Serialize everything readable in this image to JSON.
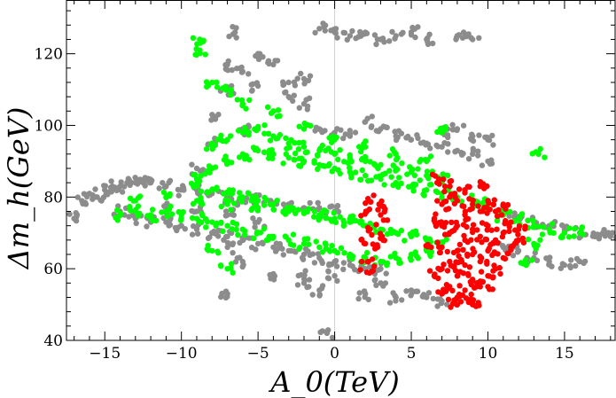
{
  "chart_data": {
    "type": "scatter",
    "xlabel": "A_0(TeV)",
    "ylabel": "Δm_h(GeV)",
    "xlim": [
      -17.5,
      18.3
    ],
    "ylim": [
      40,
      135
    ],
    "xticks": [
      -15,
      -10,
      -5,
      0,
      5,
      10,
      15
    ],
    "yticks": [
      40,
      60,
      80,
      100,
      120
    ],
    "xtick_labels": [
      "−15",
      "−10",
      "−5",
      "0",
      "5",
      "10",
      "15"
    ],
    "ytick_labels": [
      "40",
      "60",
      "80",
      "100",
      "120"
    ],
    "zero_line": true,
    "grid": false,
    "legend": "none",
    "series": [
      {
        "color": "#8c8c8c",
        "points": [
          [
            -17,
            74
          ],
          [
            -16.5,
            79
          ],
          [
            -16,
            81
          ],
          [
            -15.5,
            80
          ],
          [
            -15,
            82
          ],
          [
            -14.5,
            83
          ],
          [
            -14,
            83
          ],
          [
            -13.5,
            84
          ],
          [
            -13,
            84
          ],
          [
            -12.5,
            84
          ],
          [
            -12,
            84
          ],
          [
            -11,
            83
          ],
          [
            -10,
            82
          ],
          [
            -9,
            82
          ],
          [
            -8,
            81
          ],
          [
            -7,
            80
          ],
          [
            -6,
            79
          ],
          [
            -5,
            79
          ],
          [
            -4,
            78
          ],
          [
            -3,
            78
          ],
          [
            -2,
            77
          ],
          [
            -1,
            77
          ],
          [
            0,
            76
          ],
          [
            -13,
            74
          ],
          [
            -12,
            73
          ],
          [
            -11,
            73
          ],
          [
            -10,
            72
          ],
          [
            -9,
            71
          ],
          [
            -8,
            70
          ],
          [
            -7,
            69
          ],
          [
            -6,
            68
          ],
          [
            -5,
            67
          ],
          [
            -4,
            66
          ],
          [
            -3,
            65
          ],
          [
            -2,
            64
          ],
          [
            -1,
            63
          ],
          [
            0,
            62
          ],
          [
            1,
            61
          ],
          [
            2,
            60
          ],
          [
            3,
            60
          ],
          [
            -14,
            76
          ],
          [
            -11,
            77
          ],
          [
            -9,
            76
          ],
          [
            -7,
            75
          ],
          [
            -5,
            73
          ],
          [
            -9,
            88
          ],
          [
            -8,
            95
          ],
          [
            -8,
            103
          ],
          [
            -7,
            110
          ],
          [
            -7,
            117
          ],
          [
            -6.5,
            126
          ],
          [
            -6,
            115
          ],
          [
            -5,
            120
          ],
          [
            -4,
            117
          ],
          [
            -3,
            108
          ],
          [
            -2,
            106
          ],
          [
            -1,
            99
          ],
          [
            0,
            98
          ],
          [
            1,
            97
          ],
          [
            2,
            101
          ],
          [
            3,
            99
          ],
          [
            4,
            97
          ],
          [
            5,
            96
          ],
          [
            6,
            95
          ],
          [
            7,
            94
          ],
          [
            8,
            93
          ],
          [
            9,
            92
          ],
          [
            10,
            90
          ],
          [
            -8,
            70
          ],
          [
            -7,
            66
          ],
          [
            -6,
            62
          ],
          [
            -7,
            53
          ],
          [
            -4,
            58
          ],
          [
            -2,
            58
          ],
          [
            0,
            58
          ],
          [
            -0.5,
            42
          ],
          [
            -2,
            56
          ],
          [
            -1,
            54
          ],
          [
            2,
            53
          ],
          [
            3,
            56
          ],
          [
            4,
            52
          ],
          [
            5,
            54
          ],
          [
            6,
            52
          ],
          [
            7,
            51
          ],
          [
            -1,
            127
          ],
          [
            0,
            126
          ],
          [
            1,
            125
          ],
          [
            2,
            126
          ],
          [
            3,
            124
          ],
          [
            4,
            125
          ],
          [
            5,
            126
          ],
          [
            6,
            124
          ],
          [
            8,
            125
          ],
          [
            9,
            124
          ],
          [
            11,
            76
          ],
          [
            12,
            74
          ],
          [
            13,
            73
          ],
          [
            14,
            72
          ],
          [
            15,
            71
          ],
          [
            16,
            70
          ],
          [
            17,
            69
          ],
          [
            17.5,
            70
          ],
          [
            18,
            69
          ],
          [
            11,
            66
          ],
          [
            12,
            65
          ],
          [
            13,
            63
          ],
          [
            14,
            62
          ],
          [
            15,
            61
          ],
          [
            16,
            62
          ],
          [
            10,
            96
          ],
          [
            9,
            97
          ],
          [
            8,
            99
          ],
          [
            7,
            98
          ],
          [
            -3,
            112
          ],
          [
            -2,
            113
          ],
          [
            -5,
            111
          ],
          [
            -6,
            99
          ]
        ]
      },
      {
        "color": "#00ff00",
        "points": [
          [
            -14,
            75
          ],
          [
            -13,
            76
          ],
          [
            -12,
            75
          ],
          [
            -11,
            76
          ],
          [
            -10,
            75
          ],
          [
            -9,
            74
          ],
          [
            -8,
            73
          ],
          [
            -7,
            72
          ],
          [
            -6,
            71
          ],
          [
            -5,
            70
          ],
          [
            -4,
            69
          ],
          [
            -3,
            68
          ],
          [
            -2,
            67
          ],
          [
            -1,
            66
          ],
          [
            0,
            65
          ],
          [
            1,
            64
          ],
          [
            2,
            63
          ],
          [
            3,
            62
          ],
          [
            4,
            63
          ],
          [
            5,
            64
          ],
          [
            6,
            65
          ],
          [
            -13,
            79
          ],
          [
            -11,
            80
          ],
          [
            -9,
            79
          ],
          [
            -7,
            78
          ],
          [
            -5,
            77
          ],
          [
            -3,
            76
          ],
          [
            -1,
            75
          ],
          [
            1,
            74
          ],
          [
            -9,
            85
          ],
          [
            -8,
            88
          ],
          [
            -7,
            90
          ],
          [
            -6,
            92
          ],
          [
            -5,
            93
          ],
          [
            -4,
            92
          ],
          [
            -3,
            91
          ],
          [
            -2,
            90
          ],
          [
            -1,
            89
          ],
          [
            0,
            88
          ],
          [
            1,
            87
          ],
          [
            2,
            86
          ],
          [
            3,
            85
          ],
          [
            4,
            84
          ],
          [
            5,
            83
          ],
          [
            6,
            82
          ],
          [
            7,
            81
          ],
          [
            8,
            80
          ],
          [
            9,
            79
          ],
          [
            10,
            78
          ],
          [
            -8,
            95
          ],
          [
            -7,
            96
          ],
          [
            -6,
            98
          ],
          [
            -5,
            99
          ],
          [
            -4,
            97
          ],
          [
            -3,
            95
          ],
          [
            -2,
            94
          ],
          [
            -1,
            93
          ],
          [
            0,
            92
          ],
          [
            1,
            91
          ],
          [
            2,
            90
          ],
          [
            3,
            89
          ],
          [
            4,
            88
          ],
          [
            5,
            87
          ],
          [
            6,
            86
          ],
          [
            7,
            85
          ],
          [
            -9,
            83
          ],
          [
            -8,
            82
          ],
          [
            -7,
            81
          ],
          [
            -6,
            80
          ],
          [
            -5,
            79
          ],
          [
            -4,
            78
          ],
          [
            -3,
            77
          ],
          [
            -2,
            76
          ],
          [
            -1,
            75
          ],
          [
            0,
            74
          ],
          [
            1,
            73
          ],
          [
            2,
            72
          ],
          [
            3,
            71
          ],
          [
            4,
            70
          ],
          [
            5,
            69
          ],
          [
            6,
            68
          ],
          [
            7,
            67
          ],
          [
            -8.8,
            124
          ],
          [
            -8.8,
            121
          ],
          [
            -8,
            112
          ],
          [
            -7,
            110
          ],
          [
            -6,
            106
          ],
          [
            -4,
            104
          ],
          [
            -2,
            99
          ],
          [
            0,
            96
          ],
          [
            2,
            94
          ],
          [
            4,
            92
          ],
          [
            6,
            90
          ],
          [
            7,
            98
          ],
          [
            13.3,
            92
          ],
          [
            11,
            75
          ],
          [
            12,
            74
          ],
          [
            13,
            72
          ],
          [
            14,
            71
          ],
          [
            15,
            70
          ],
          [
            16,
            70
          ],
          [
            12.5,
            61
          ],
          [
            13,
            67
          ],
          [
            -7,
            60
          ],
          [
            -8,
            65
          ]
        ]
      },
      {
        "color": "#ff0000",
        "points": [
          [
            6.5,
            58
          ],
          [
            7,
            60
          ],
          [
            7,
            66
          ],
          [
            7,
            72
          ],
          [
            7,
            78
          ],
          [
            7.5,
            55
          ],
          [
            7.5,
            62
          ],
          [
            7.5,
            70
          ],
          [
            7.5,
            80
          ],
          [
            8,
            52
          ],
          [
            8,
            58
          ],
          [
            8,
            65
          ],
          [
            8,
            72
          ],
          [
            8,
            79
          ],
          [
            8.5,
            54
          ],
          [
            8.5,
            61
          ],
          [
            8.5,
            68
          ],
          [
            8.5,
            75
          ],
          [
            8.5,
            82
          ],
          [
            9,
            50
          ],
          [
            9,
            57
          ],
          [
            9,
            64
          ],
          [
            9,
            71
          ],
          [
            9,
            78
          ],
          [
            9.5,
            55
          ],
          [
            9.5,
            62
          ],
          [
            9.5,
            69
          ],
          [
            9.5,
            76
          ],
          [
            9.5,
            83
          ],
          [
            10,
            58
          ],
          [
            10,
            65
          ],
          [
            10,
            72
          ],
          [
            10,
            79
          ],
          [
            10.5,
            60
          ],
          [
            10.5,
            68
          ],
          [
            10.5,
            76
          ],
          [
            11,
            63
          ],
          [
            11,
            70
          ],
          [
            11,
            78
          ],
          [
            11.5,
            66
          ],
          [
            11.5,
            73
          ],
          [
            12,
            68
          ],
          [
            12,
            71
          ],
          [
            6.8,
            85
          ],
          [
            7.2,
            83
          ],
          [
            6.5,
            74
          ],
          [
            6.3,
            66
          ],
          [
            2.1,
            76
          ],
          [
            2.2,
            79
          ],
          [
            2.3,
            71
          ],
          [
            2.0,
            67
          ],
          [
            2.1,
            59
          ],
          [
            2.2,
            62
          ],
          [
            2.9,
            78
          ],
          [
            3.0,
            75
          ],
          [
            3.1,
            69
          ],
          [
            2.8,
            66
          ],
          [
            8,
            50
          ],
          [
            9,
            51
          ],
          [
            10,
            55
          ],
          [
            7,
            53
          ]
        ]
      }
    ]
  }
}
